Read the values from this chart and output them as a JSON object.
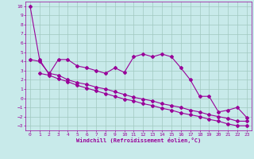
{
  "xlabel": "Windchill (Refroidissement éolien,°C)",
  "bg_color": "#c8eaea",
  "grid_color": "#a0c8c0",
  "line_color": "#990099",
  "xlim": [
    -0.5,
    23.5
  ],
  "ylim": [
    -3.5,
    10.5
  ],
  "xticks": [
    0,
    1,
    2,
    3,
    4,
    5,
    6,
    7,
    8,
    9,
    10,
    11,
    12,
    13,
    14,
    15,
    16,
    17,
    18,
    19,
    20,
    21,
    22,
    23
  ],
  "yticks": [
    -3,
    -2,
    -1,
    0,
    1,
    2,
    3,
    4,
    5,
    6,
    7,
    8,
    9,
    10
  ],
  "line1_x": [
    0,
    1,
    2,
    3,
    4,
    5,
    6,
    7,
    8,
    9,
    10,
    11,
    12,
    13,
    14,
    15,
    16,
    17,
    18,
    19,
    20,
    21,
    22,
    23
  ],
  "line1_y": [
    10,
    4.2,
    2.6,
    4.2,
    4.2,
    3.5,
    3.3,
    3.0,
    2.7,
    3.3,
    2.8,
    4.5,
    4.8,
    4.5,
    4.8,
    4.5,
    3.3,
    2.0,
    0.2,
    0.2,
    -1.5,
    -1.3,
    -1.0,
    -2.1
  ],
  "line2_x": [
    0,
    1,
    2,
    3,
    4,
    5,
    6,
    7,
    8,
    9,
    10,
    11,
    12,
    13,
    14,
    15,
    16,
    17,
    18,
    19,
    20,
    21,
    22,
    23
  ],
  "line2_y": [
    4.2,
    4.0,
    2.7,
    2.5,
    2.0,
    1.7,
    1.5,
    1.2,
    1.0,
    0.7,
    0.4,
    0.1,
    -0.1,
    -0.3,
    -0.6,
    -0.8,
    -1.0,
    -1.3,
    -1.5,
    -1.8,
    -2.0,
    -2.2,
    -2.5,
    -2.5
  ],
  "line3_x": [
    1,
    2,
    3,
    4,
    5,
    6,
    7,
    8,
    9,
    10,
    11,
    12,
    13,
    14,
    15,
    16,
    17,
    18,
    19,
    20,
    21,
    22,
    23
  ],
  "line3_y": [
    2.7,
    2.5,
    2.1,
    1.8,
    1.4,
    1.1,
    0.8,
    0.5,
    0.2,
    -0.1,
    -0.3,
    -0.6,
    -0.8,
    -1.1,
    -1.3,
    -1.6,
    -1.8,
    -2.0,
    -2.3,
    -2.5,
    -2.8,
    -3.0,
    -3.0
  ],
  "marker": "D",
  "markersize": 2.0,
  "linewidth": 0.8
}
